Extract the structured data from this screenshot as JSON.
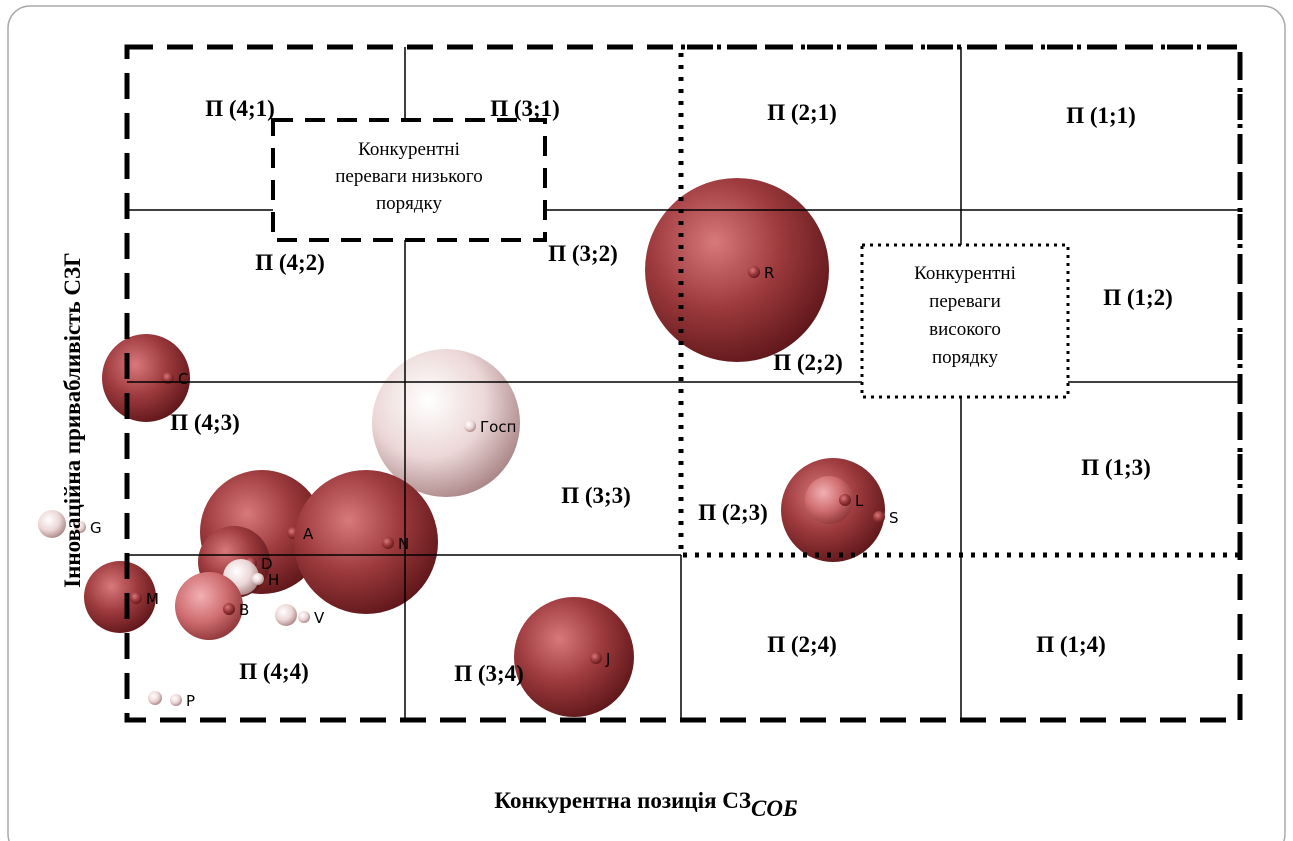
{
  "cells": [
    "П (4;1)",
    "П (3;1)",
    "П (2;1)",
    "П (1;1)",
    "П (4;2)",
    "П (3;2)",
    "П (1;2)",
    "П (2;2)",
    "П (4;3)",
    "П (3;3)",
    "П (1;3)",
    "П (2;3)",
    "П (4;4)",
    "П (3;4)",
    "П (2;4)",
    "П (1;4)"
  ],
  "low_box": [
    "Конкурентні",
    "переваги низького",
    "порядку"
  ],
  "high_box": [
    "Конкурентні",
    "переваги",
    "високого",
    "порядку"
  ],
  "bubbles": [
    "R",
    "C",
    "Госп",
    "A",
    "N",
    "D",
    "H",
    "M",
    "B",
    "V",
    "J",
    "L",
    "S",
    "G",
    "P"
  ],
  "x_title": "Конкурентна позиція СЗ",
  "x_title_sub": "СОБ",
  "y_title": "Інноваційна привабливість СЗГ"
}
